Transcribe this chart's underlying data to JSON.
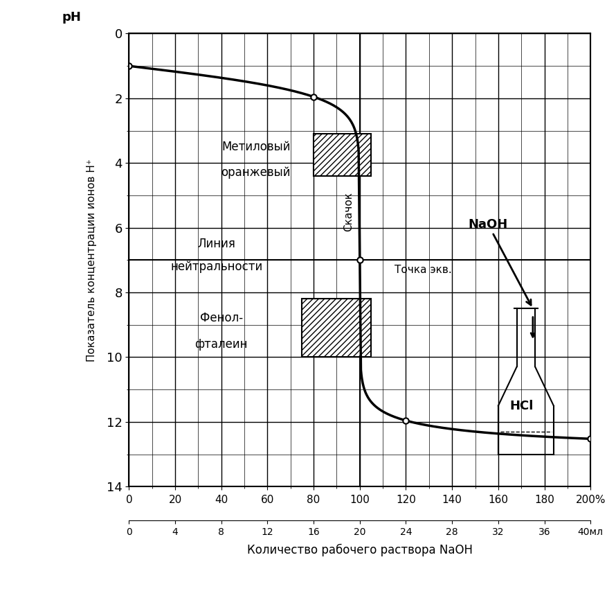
{
  "title": "",
  "ylabel": "Показатель концентрации ионов H⁺",
  "xlabel": "Количество рабочего раствора NaOH",
  "ph_label": "pH",
  "ylim": [
    0,
    14
  ],
  "xlim": [
    0,
    200
  ],
  "yticks": [
    0,
    2,
    4,
    6,
    8,
    10,
    12,
    14
  ],
  "xticks_pct": [
    0,
    20,
    40,
    60,
    80,
    100,
    120,
    140,
    160,
    180,
    200
  ],
  "xticks_ml": [
    0,
    4,
    8,
    12,
    16,
    20,
    24,
    28,
    32,
    36,
    40
  ],
  "neutral_ph": 7,
  "equiv_pct": 100,
  "methyl_orange_ph_low": 3.1,
  "methyl_orange_ph_high": 4.4,
  "phenolphthalein_ph_low": 8.2,
  "phenolphthalein_ph_high": 10.0,
  "naoh_label": "NaOH",
  "hcl_label": "HCl",
  "skakon_label": "Скачок",
  "tochka_label": "Точка экв.",
  "methyl_label_line1": "Метиловый",
  "methyl_label_line2": "оранжевый",
  "phenol_label_line1": "Фенол-",
  "phenol_label_line2": "фталеин",
  "line_color": "#000000",
  "hatch_color": "#000000",
  "bg_color": "#ffffff"
}
